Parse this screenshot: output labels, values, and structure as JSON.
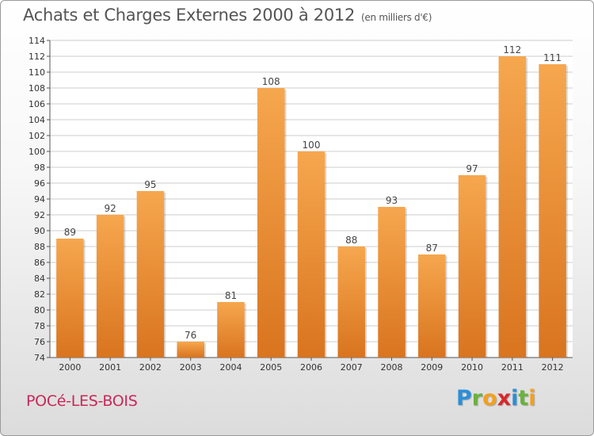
{
  "title": "Achats et Charges Externes 2000 à 2012",
  "unit": "(en milliers d'€)",
  "commune": "POCé-LES-BOIS",
  "logo": {
    "text": "Proxiti",
    "letters": [
      {
        "ch": "P",
        "color": "#2a8fd8"
      },
      {
        "ch": "r",
        "color": "#6ab23c"
      },
      {
        "ch": "o",
        "color": "#f2a020"
      },
      {
        "ch": "x",
        "color": "#d8282a"
      },
      {
        "ch": "i",
        "color": "#2a8fd8"
      },
      {
        "ch": "t",
        "color": "#6ab23c"
      },
      {
        "ch": "i",
        "color": "#f2a020"
      }
    ]
  },
  "colors": {
    "bar_top": "#f6a74e",
    "bar_bottom": "#d9741f",
    "grid": "#cccccc",
    "axis": "#555555",
    "commune": "#c8285a"
  },
  "chart_data": {
    "type": "bar",
    "categories": [
      "2000",
      "2001",
      "2002",
      "2003",
      "2004",
      "2005",
      "2006",
      "2007",
      "2008",
      "2009",
      "2010",
      "2011",
      "2012"
    ],
    "values": [
      89,
      92,
      95,
      76,
      81,
      108,
      100,
      88,
      93,
      87,
      97,
      112,
      111
    ],
    "ylim": [
      74,
      114
    ],
    "yticks": [
      74,
      76,
      78,
      80,
      82,
      84,
      86,
      88,
      90,
      92,
      94,
      96,
      98,
      100,
      102,
      104,
      106,
      108,
      110,
      112,
      114
    ],
    "grid": true,
    "data_labels": true,
    "xlabel": "",
    "ylabel": ""
  }
}
